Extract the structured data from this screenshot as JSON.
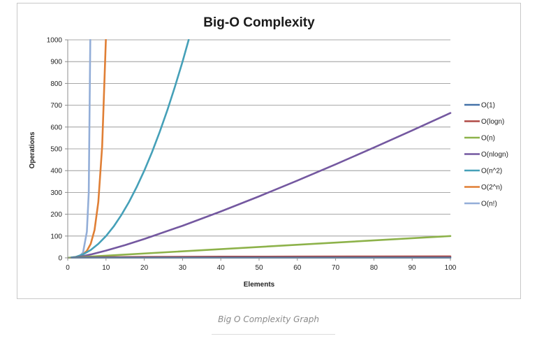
{
  "caption": "Big O Complexity Graph",
  "chart_data": {
    "type": "line",
    "title": "Big-O Complexity",
    "xlabel": "Elements",
    "ylabel": "Operations",
    "xlim": [
      0,
      100
    ],
    "ylim": [
      0,
      1000
    ],
    "xticks": [
      0,
      10,
      20,
      30,
      40,
      50,
      60,
      70,
      80,
      90,
      100
    ],
    "yticks": [
      0,
      100,
      200,
      300,
      400,
      500,
      600,
      700,
      800,
      900,
      1000
    ],
    "grid": "horizontal",
    "legend_position": "right",
    "series": [
      {
        "name": "O(1)",
        "color": "#4472a8",
        "x": [
          1,
          100
        ],
        "y": [
          1,
          1
        ]
      },
      {
        "name": "O(logn)",
        "color": "#b04a46",
        "x": [
          1,
          2,
          5,
          10,
          20,
          40,
          60,
          80,
          100
        ],
        "y": [
          0,
          1,
          2.3,
          3.3,
          4.3,
          5.3,
          5.9,
          6.3,
          6.6
        ]
      },
      {
        "name": "O(n)",
        "color": "#8db24a",
        "x": [
          0,
          100
        ],
        "y": [
          0,
          100
        ]
      },
      {
        "name": "O(nlogn)",
        "color": "#7458a0",
        "x": [
          1,
          2,
          4,
          6,
          10,
          15,
          20,
          30,
          40,
          50,
          60,
          70,
          80,
          90,
          100
        ],
        "y": [
          0,
          2,
          8,
          15.5,
          33.2,
          58.6,
          86.4,
          147.2,
          212.9,
          282.2,
          354.4,
          429,
          505.8,
          584.3,
          664.4
        ]
      },
      {
        "name": "O(n^2)",
        "color": "#45a0b8",
        "x": [
          0,
          2,
          4,
          6,
          8,
          10,
          12,
          14,
          16,
          18,
          20,
          22,
          24,
          26,
          28,
          30,
          31.6
        ],
        "y": [
          0,
          4,
          16,
          36,
          64,
          100,
          144,
          196,
          256,
          324,
          400,
          484,
          576,
          676,
          784,
          900,
          1000
        ]
      },
      {
        "name": "O(2^n)",
        "color": "#e07f35",
        "x": [
          1,
          2,
          3,
          4,
          5,
          6,
          7,
          8,
          9,
          9.97
        ],
        "y": [
          2,
          4,
          8,
          16,
          32,
          64,
          128,
          256,
          512,
          1000
        ]
      },
      {
        "name": "O(n!)",
        "color": "#93aed8",
        "x": [
          1,
          2,
          3,
          4,
          5,
          5.5,
          5.9
        ],
        "y": [
          1,
          2,
          6,
          24,
          120,
          300,
          1000
        ]
      }
    ]
  }
}
